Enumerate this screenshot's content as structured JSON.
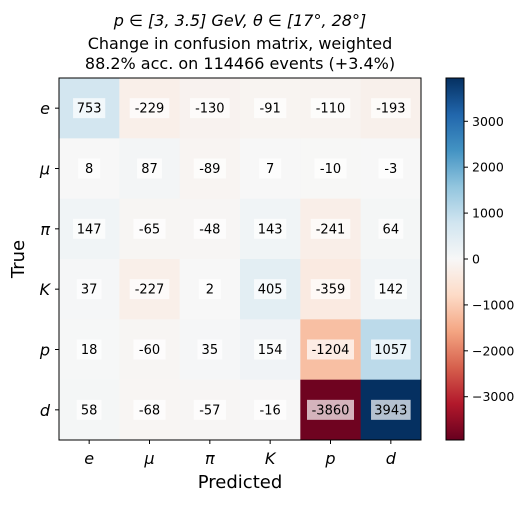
{
  "chart_data": {
    "type": "heatmap",
    "title_lines": [
      "p ∈ [3, 3.5] GeV, θ ∈ [17°, 28°]",
      "Change in confusion matrix, weighted",
      "88.2% acc. on 114466 events (+3.4%)"
    ],
    "xlabel": "Predicted",
    "ylabel": "True",
    "x_categories": [
      "e",
      "μ",
      "π",
      "K",
      "p",
      "d"
    ],
    "y_categories": [
      "e",
      "μ",
      "π",
      "K",
      "p",
      "d"
    ],
    "values": [
      [
        753,
        -229,
        -130,
        -91,
        -110,
        -193
      ],
      [
        8,
        87,
        -89,
        7,
        -10,
        -3
      ],
      [
        147,
        -65,
        -48,
        143,
        -241,
        64
      ],
      [
        37,
        -227,
        2,
        405,
        -359,
        142
      ],
      [
        18,
        -60,
        35,
        154,
        -1204,
        1057
      ],
      [
        58,
        -68,
        -57,
        -16,
        -3860,
        3943
      ]
    ],
    "colormap": "RdBu diverging",
    "color_range": [
      -3943,
      3943
    ],
    "colorbar_ticks": [
      3000,
      2000,
      1000,
      0,
      -1000,
      -2000,
      -3000
    ],
    "colorbar_tick_labels": [
      "3000",
      "2000",
      "1000",
      "0",
      "−1000",
      "−2000",
      "−3000"
    ],
    "grid": false
  }
}
